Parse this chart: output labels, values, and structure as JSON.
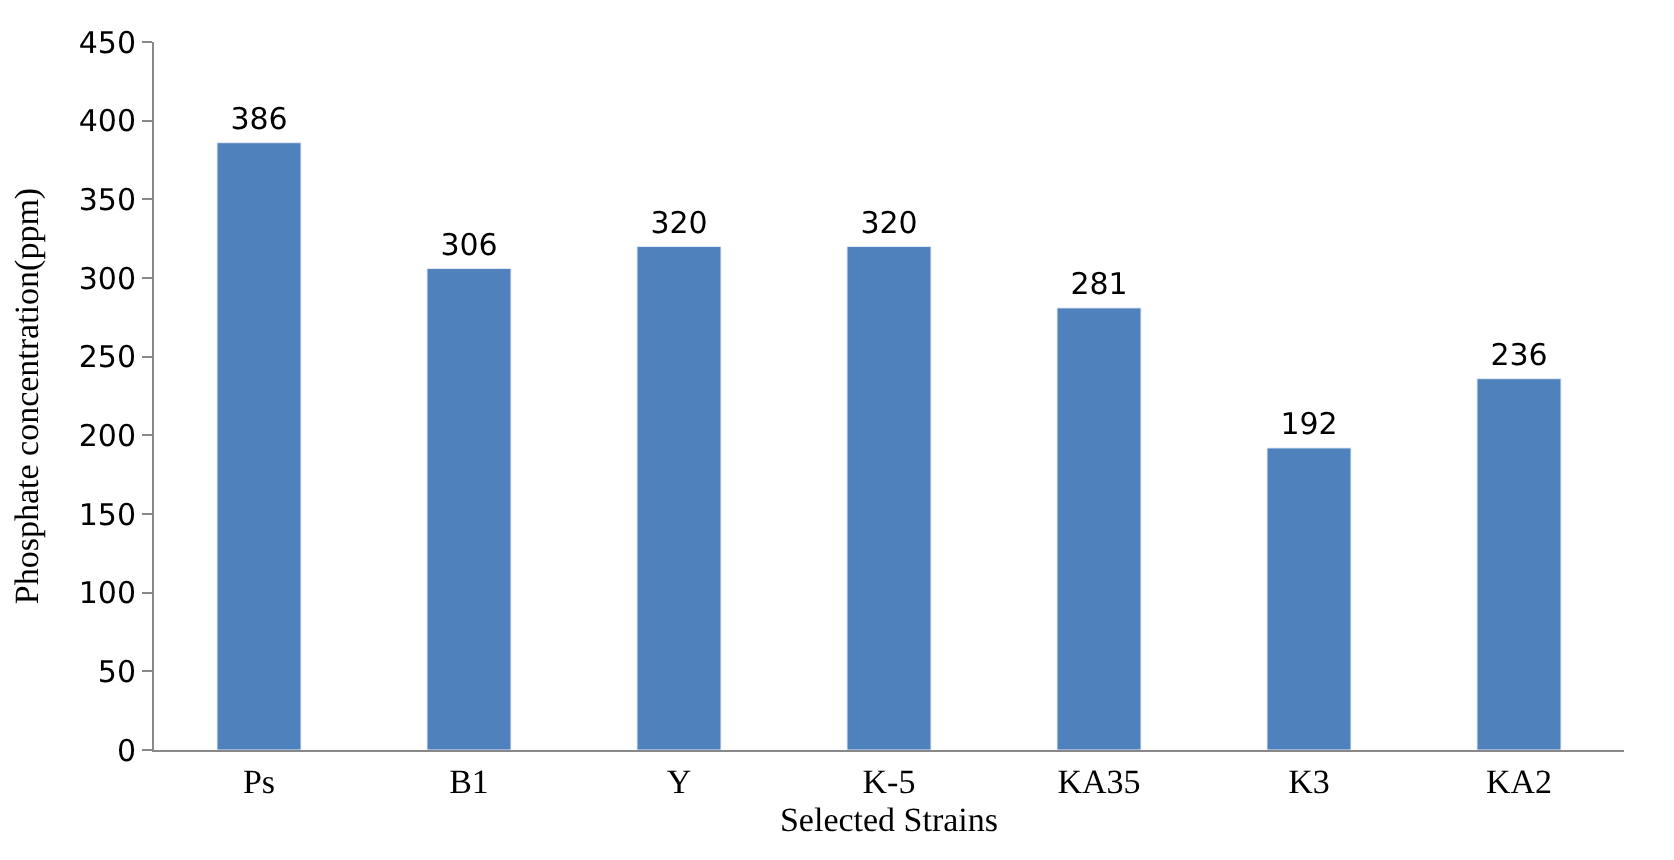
{
  "chart_data": {
    "type": "bar",
    "xlabel": "Selected Strains",
    "ylabel": "Phosphate concentration(ppm)",
    "categories": [
      "Ps",
      "B1",
      "Y",
      "K-5",
      "KA35",
      "K3",
      "KA2"
    ],
    "values": [
      386,
      306,
      320,
      320,
      281,
      192,
      236
    ],
    "color": "#4f81bd",
    "ylim": [
      0,
      450
    ],
    "yticks": [
      0,
      50,
      100,
      150,
      200,
      250,
      300,
      350,
      400,
      450
    ],
    "data_labels": true
  }
}
